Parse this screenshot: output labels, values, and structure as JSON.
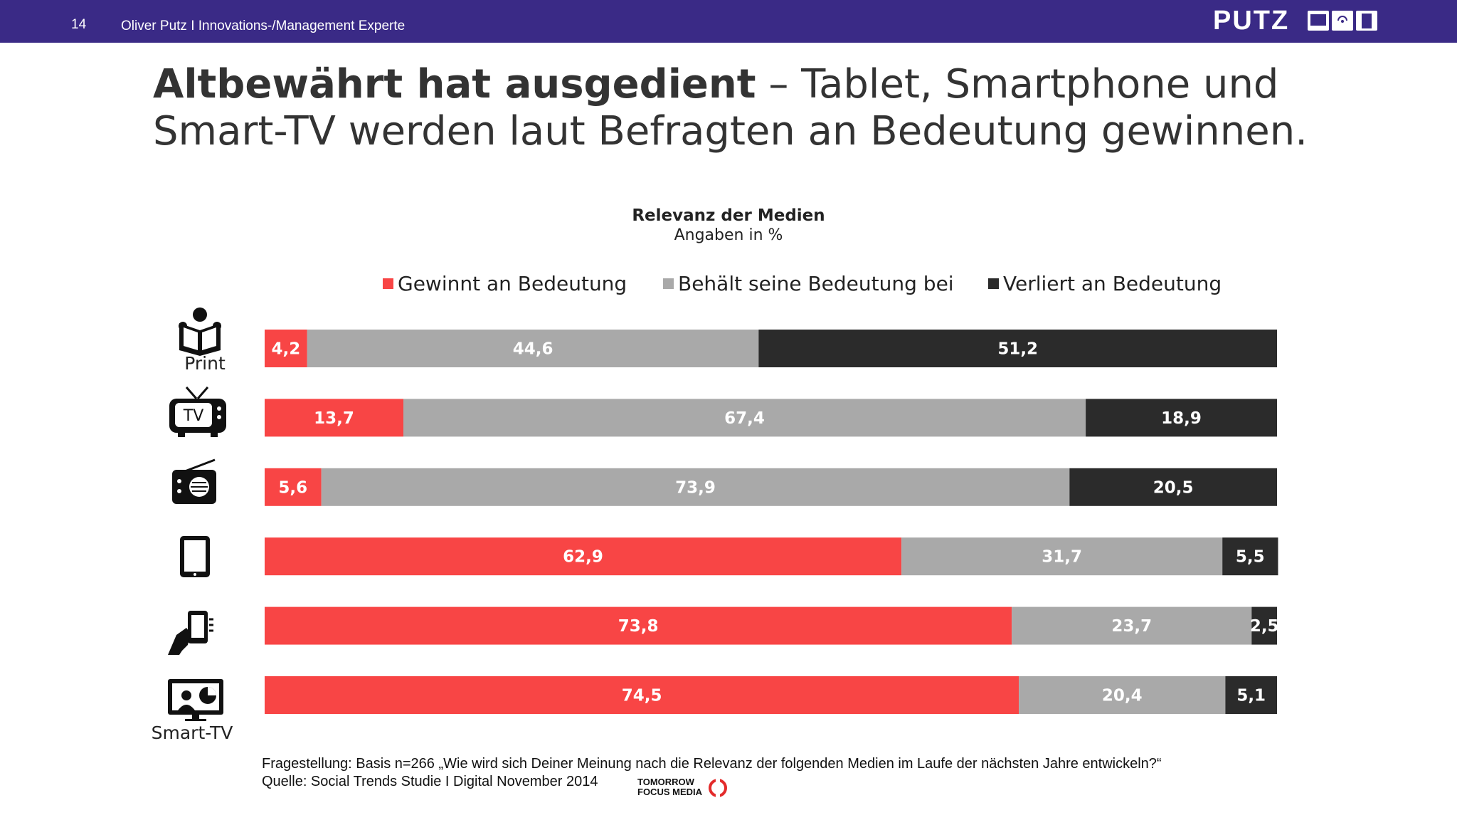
{
  "header": {
    "page_number": "14",
    "author": "Oliver Putz  I  Innovations-/Management Experte",
    "logo": "PUTZ"
  },
  "headline": {
    "bold": "Altbewährt hat ausgedient",
    "rest": " – Tablet, Smartphone und Smart-TV werden laut Befragten an Bedeutung gewinnen."
  },
  "chart_data": {
    "type": "bar",
    "orientation": "horizontal",
    "stacked": true,
    "title": "Relevanz der Medien",
    "subtitle": "Angaben in %",
    "categories": [
      "Print",
      "TV",
      "Radio",
      "Tablet",
      "Smartphone",
      "Smart-TV"
    ],
    "category_labels": [
      "Print",
      "",
      "",
      "",
      "",
      "Smart-TV"
    ],
    "series": [
      {
        "name": "Gewinnt an Bedeutung",
        "color": "#f84545",
        "values": [
          4.2,
          13.7,
          5.6,
          62.9,
          73.8,
          74.5
        ],
        "labels": [
          "4,2",
          "13,7",
          "5,6",
          "62,9",
          "73,8",
          "74,5"
        ]
      },
      {
        "name": "Behält seine Bedeutung bei",
        "color": "#a9a9a9",
        "values": [
          44.6,
          67.4,
          73.9,
          31.7,
          23.7,
          20.4
        ],
        "labels": [
          "44,6",
          "67,4",
          "73,9",
          "31,7",
          "23,7",
          "20,4"
        ]
      },
      {
        "name": "Verliert an Bedeutung",
        "color": "#2b2b2b",
        "values": [
          51.2,
          18.9,
          20.5,
          5.5,
          2.5,
          5.1
        ],
        "labels": [
          "51,2",
          "18,9",
          "20,5",
          "5,5",
          "2,5",
          "5,1"
        ]
      }
    ],
    "xlim": [
      0,
      100
    ],
    "grid": false,
    "legend_position": "top"
  },
  "icons": [
    "reading-person-icon",
    "tv-icon",
    "radio-icon",
    "tablet-icon",
    "smartphone-hand-icon",
    "smart-tv-icon"
  ],
  "footer": {
    "question": "Fragestellung: Basis n=266 „Wie wird sich Deiner Meinung nach die Relevanz der folgenden Medien im Laufe der nächsten Jahre entwickeln?“",
    "source": "Quelle: Social Trends Studie I Digital November 2014",
    "brand_line1": "TOMORROW",
    "brand_line2": "FOCUS MEDIA"
  }
}
